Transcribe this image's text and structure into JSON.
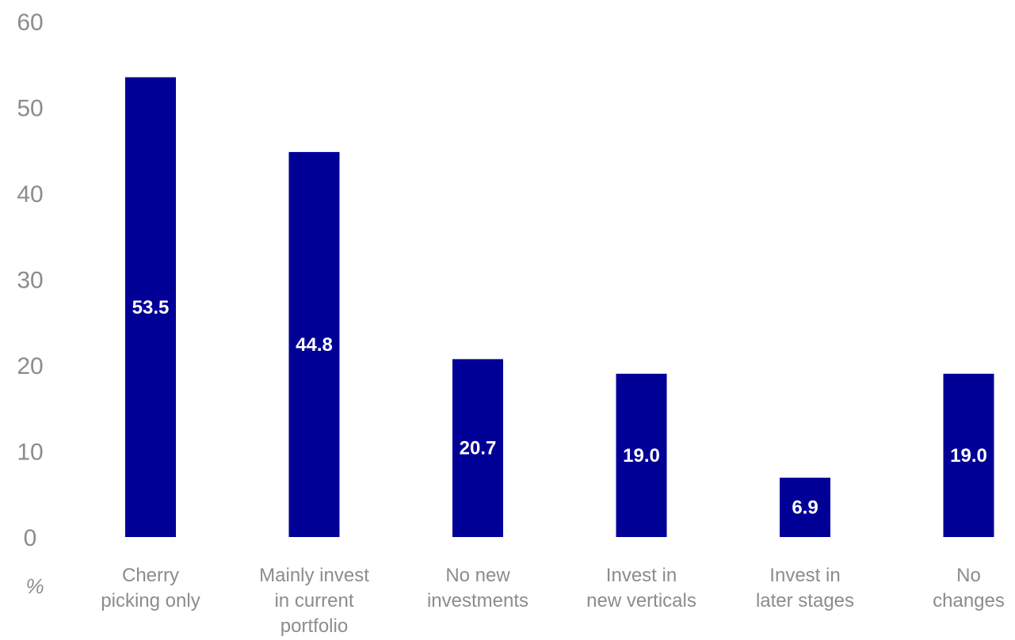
{
  "chart_data": {
    "type": "bar",
    "categories": [
      [
        "Cherry",
        "picking only"
      ],
      [
        "Mainly invest",
        "in current",
        "portfolio"
      ],
      [
        "No new",
        "investments"
      ],
      [
        "Invest in",
        "new verticals"
      ],
      [
        "Invest in",
        "later stages"
      ],
      [
        "No",
        "changes"
      ]
    ],
    "values": [
      53.5,
      44.8,
      20.7,
      19.0,
      6.9,
      19.0
    ],
    "data_labels": [
      "53.5",
      "44.8",
      "20.7",
      "19.0",
      "6.9",
      "19.0"
    ],
    "ylim": [
      0,
      60
    ],
    "yticks": [
      "0",
      "10",
      "20",
      "30",
      "40",
      "50",
      "60"
    ],
    "unit_label": "%",
    "bar_color": "#000096",
    "label_color": "#ffffff",
    "axis_text_color": "#8c8c8c",
    "grid": false,
    "legend": false
  }
}
